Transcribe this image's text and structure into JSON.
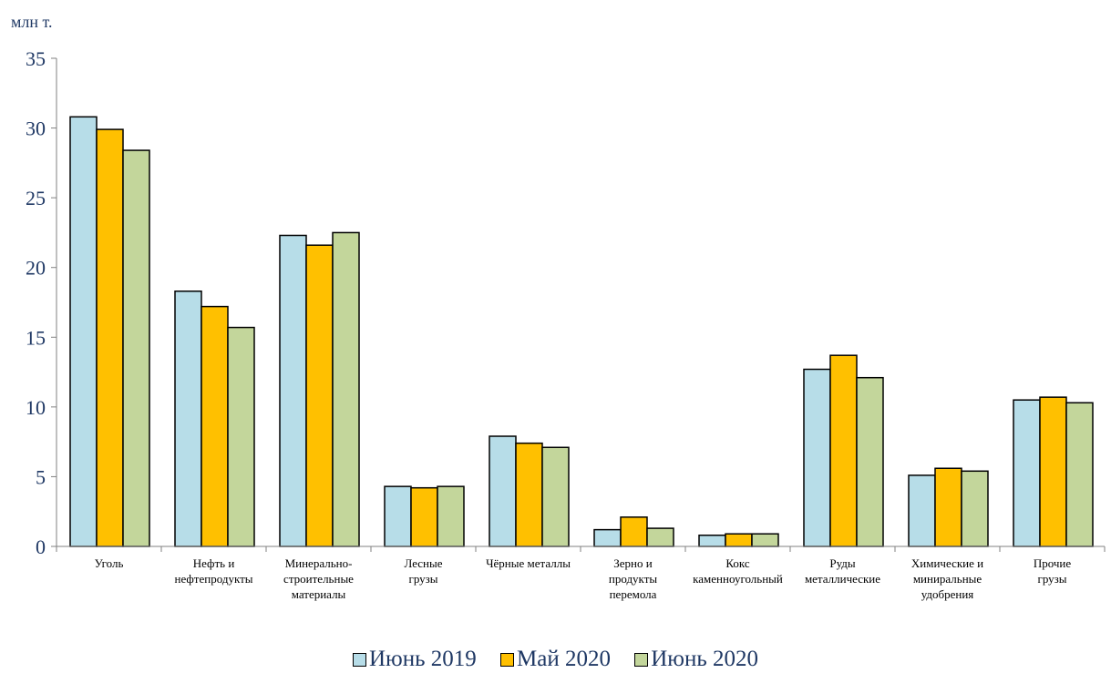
{
  "chart_data": {
    "type": "bar",
    "unit_label": "млн т.",
    "categories": [
      [
        "Уголь"
      ],
      [
        "Нефть и",
        "нефтепродукты"
      ],
      [
        "Минерально-",
        "строительные",
        "материалы"
      ],
      [
        "Лесные",
        "грузы"
      ],
      [
        "Чёрные металлы"
      ],
      [
        "Зерно и",
        "продукты",
        "перемола"
      ],
      [
        "Кокс",
        "каменноугольный"
      ],
      [
        "Руды",
        "металлические"
      ],
      [
        "Химические и",
        "миниральные",
        "удобрения"
      ],
      [
        "Прочие",
        "грузы"
      ]
    ],
    "series": [
      {
        "name": "Июнь 2019",
        "color": "#b7dde8",
        "values": [
          30.8,
          18.3,
          22.3,
          4.3,
          7.9,
          1.2,
          0.8,
          12.7,
          5.1,
          10.5
        ]
      },
      {
        "name": "Май 2020",
        "color": "#ffc000",
        "values": [
          29.9,
          17.2,
          21.6,
          4.2,
          7.4,
          2.1,
          0.9,
          13.7,
          5.6,
          10.7
        ]
      },
      {
        "name": "Июнь 2020",
        "color": "#c3d69b",
        "values": [
          28.4,
          15.7,
          22.5,
          4.3,
          7.1,
          1.3,
          0.9,
          12.1,
          5.4,
          10.3
        ]
      }
    ],
    "ylim": [
      0,
      35
    ],
    "yticks": [
      0,
      5,
      10,
      15,
      20,
      25,
      30,
      35
    ],
    "legend_position": "bottom",
    "grid": false
  }
}
